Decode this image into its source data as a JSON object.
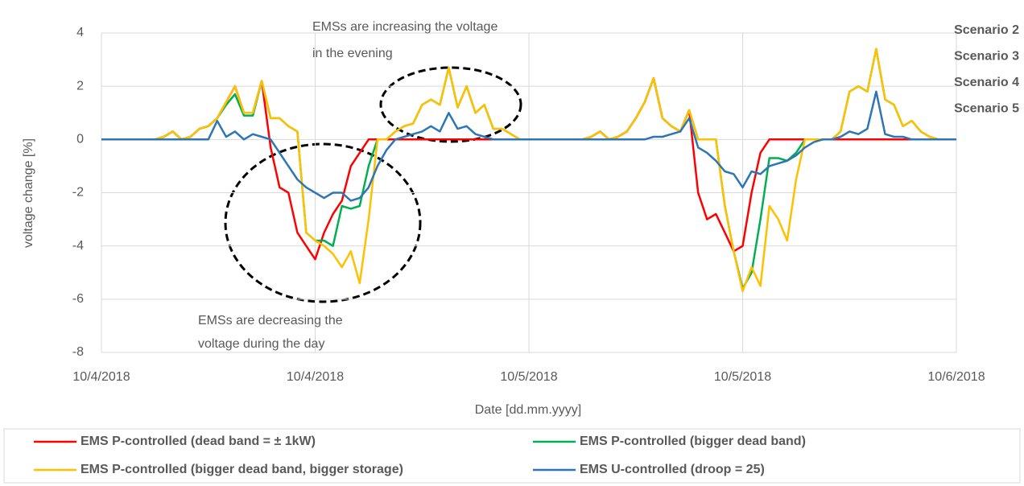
{
  "chart_data": {
    "type": "line",
    "xlabel": "Date [dd.mm.yyyy]",
    "ylabel": "voltage change [%]",
    "xlim": [
      0,
      48
    ],
    "xticks": [
      {
        "value": 0,
        "label": "10/4/2018"
      },
      {
        "value": 12,
        "label": "10/4/2018"
      },
      {
        "value": 24,
        "label": "10/5/2018"
      },
      {
        "value": 36,
        "label": "10/5/2018"
      },
      {
        "value": 48,
        "label": "10/6/2018"
      }
    ],
    "ylim": [
      -8,
      4
    ],
    "yticks": [
      -8,
      -6,
      -4,
      -2,
      0,
      2,
      4
    ],
    "grid": true,
    "legend": "bottom",
    "annotations": [
      "EMSs are increasing the voltage",
      "in the evening",
      "EMSs are decreasing the",
      "voltage during the day"
    ],
    "scenario_labels": [
      {
        "text": "Scenario 2",
        "color": "#ff0000"
      },
      {
        "text": "Scenario 3",
        "color": "#00b050"
      },
      {
        "text": "Scenario 4",
        "color": "#ffc000"
      },
      {
        "text": "Scenario 5",
        "color": "#2e75b6"
      }
    ],
    "x": [
      0,
      0.5,
      1,
      1.5,
      2,
      2.5,
      3,
      3.5,
      4,
      4.5,
      5,
      5.5,
      6,
      6.5,
      7,
      7.5,
      8,
      8.5,
      9,
      9.5,
      10,
      10.5,
      11,
      11.5,
      12,
      12.5,
      13,
      13.5,
      14,
      14.5,
      15,
      15.5,
      16,
      16.5,
      17,
      17.5,
      18,
      18.5,
      19,
      19.5,
      20,
      20.5,
      21,
      21.5,
      22,
      22.5,
      23,
      23.5,
      24,
      24.5,
      25,
      25.5,
      26,
      26.5,
      27,
      27.5,
      28,
      28.5,
      29,
      29.5,
      30,
      30.5,
      31,
      31.5,
      32,
      32.5,
      33,
      33.5,
      34,
      34.5,
      35,
      35.5,
      36,
      36.5,
      37,
      37.5,
      38,
      38.5,
      39,
      39.5,
      40,
      40.5,
      41,
      41.5,
      42,
      42.5,
      43,
      43.5,
      44,
      44.5,
      45,
      45.5,
      46,
      46.5,
      47,
      47.5,
      48
    ],
    "series": [
      {
        "name": "EMS P-controlled (dead band = ± 1kW)",
        "color": "#ff0000",
        "values": [
          0,
          0,
          0,
          0,
          0,
          0,
          0,
          0.1,
          0.3,
          0,
          0.1,
          0.4,
          0.5,
          0.8,
          1.4,
          2.0,
          1.0,
          1.0,
          2.2,
          -0.3,
          -1.8,
          -2.0,
          -3.5,
          -4.0,
          -4.5,
          -3.5,
          -2.8,
          -2.3,
          -1.0,
          -0.5,
          0,
          0,
          0,
          0,
          0,
          0,
          0,
          0,
          0,
          0,
          0,
          0,
          0,
          0,
          0,
          0,
          0,
          0,
          0,
          0,
          0,
          0,
          0,
          0,
          0,
          0.1,
          0.3,
          0,
          0.1,
          0.3,
          0.8,
          1.4,
          2.3,
          0.8,
          0.5,
          0.3,
          1.1,
          -2.0,
          -3.0,
          -2.8,
          -3.5,
          -4.2,
          -4.0,
          -2.0,
          -0.5,
          0,
          0,
          0,
          0,
          0,
          0,
          0,
          0,
          0,
          0,
          0,
          0,
          0,
          0,
          0,
          0,
          0,
          0,
          0,
          0,
          0,
          0
        ]
      },
      {
        "name": "EMS P-controlled (bigger dead band)",
        "color": "#00b050",
        "values": [
          0,
          0,
          0,
          0,
          0,
          0,
          0,
          0.1,
          0.3,
          0,
          0.1,
          0.4,
          0.5,
          0.8,
          1.3,
          1.7,
          0.9,
          0.9,
          2.2,
          0.8,
          0.8,
          0.5,
          0.3,
          -3.5,
          -3.8,
          -3.8,
          -4.0,
          -2.5,
          -2.6,
          -2.5,
          -1.0,
          0,
          0,
          0.3,
          0.5,
          0.6,
          1.3,
          1.5,
          1.3,
          2.7,
          1.2,
          2.0,
          1.0,
          1.3,
          0.4,
          0.4,
          0.2,
          0,
          0,
          0,
          0,
          0,
          0,
          0,
          0,
          0.1,
          0.3,
          0,
          0.1,
          0.3,
          0.8,
          1.4,
          2.3,
          0.8,
          0.5,
          0.3,
          1.1,
          0,
          0,
          0,
          -2.5,
          -4.2,
          -5.6,
          -5.0,
          -3.0,
          -0.7,
          -0.7,
          -0.8,
          -0.5,
          0,
          0,
          0,
          0,
          0.3,
          1.8,
          2.0,
          1.8,
          3.4,
          1.5,
          1.3,
          0.5,
          0.7,
          0.3,
          0.1,
          0,
          0,
          0
        ]
      },
      {
        "name": "EMS P-controlled (bigger dead band, bigger storage)",
        "color": "#ffc000",
        "values": [
          0,
          0,
          0,
          0,
          0,
          0,
          0,
          0.1,
          0.3,
          0,
          0.1,
          0.4,
          0.5,
          0.8,
          1.4,
          2.0,
          1.0,
          1.0,
          2.2,
          0.8,
          0.8,
          0.5,
          0.3,
          -3.5,
          -3.8,
          -4.0,
          -4.3,
          -4.8,
          -4.2,
          -5.4,
          -3.0,
          0,
          0,
          0.3,
          0.5,
          0.6,
          1.3,
          1.5,
          1.3,
          2.7,
          1.2,
          2.0,
          1.0,
          1.3,
          0.4,
          0.4,
          0.2,
          0,
          0,
          0,
          0,
          0,
          0,
          0,
          0,
          0.1,
          0.3,
          0,
          0.1,
          0.3,
          0.8,
          1.4,
          2.3,
          0.8,
          0.5,
          0.3,
          1.1,
          0,
          0,
          0,
          -2.5,
          -4.2,
          -5.7,
          -4.8,
          -5.5,
          -2.5,
          -3.0,
          -3.8,
          -1.5,
          0,
          0,
          0,
          0,
          0.3,
          1.8,
          2.0,
          1.8,
          3.4,
          1.5,
          1.3,
          0.5,
          0.7,
          0.3,
          0.1,
          0,
          0,
          0
        ]
      },
      {
        "name": "EMS U-controlled (droop = 25)",
        "color": "#2e75b6",
        "values": [
          0,
          0,
          0,
          0,
          0,
          0,
          0,
          0,
          0,
          0,
          0,
          0,
          0,
          0.7,
          0.1,
          0.3,
          0,
          0.2,
          0.1,
          0,
          -0.5,
          -1.0,
          -1.5,
          -1.8,
          -2.0,
          -2.2,
          -2.0,
          -2.0,
          -2.3,
          -2.2,
          -1.8,
          -1.0,
          -0.4,
          0,
          0.1,
          0.2,
          0.3,
          0.5,
          0.3,
          1.0,
          0.4,
          0.5,
          0.2,
          0.1,
          0,
          0,
          0,
          0,
          0,
          0,
          0,
          0,
          0,
          0,
          0,
          0,
          0,
          0,
          0,
          0,
          0,
          0,
          0.1,
          0.1,
          0.2,
          0.3,
          0.8,
          -0.3,
          -0.5,
          -0.8,
          -1.2,
          -1.3,
          -1.8,
          -1.2,
          -1.3,
          -1.0,
          -0.9,
          -0.8,
          -0.6,
          -0.3,
          -0.1,
          0,
          0,
          0.1,
          0.3,
          0.2,
          0.4,
          1.8,
          0.2,
          0.1,
          0.1,
          0,
          0,
          0,
          0,
          0,
          0
        ]
      }
    ]
  }
}
